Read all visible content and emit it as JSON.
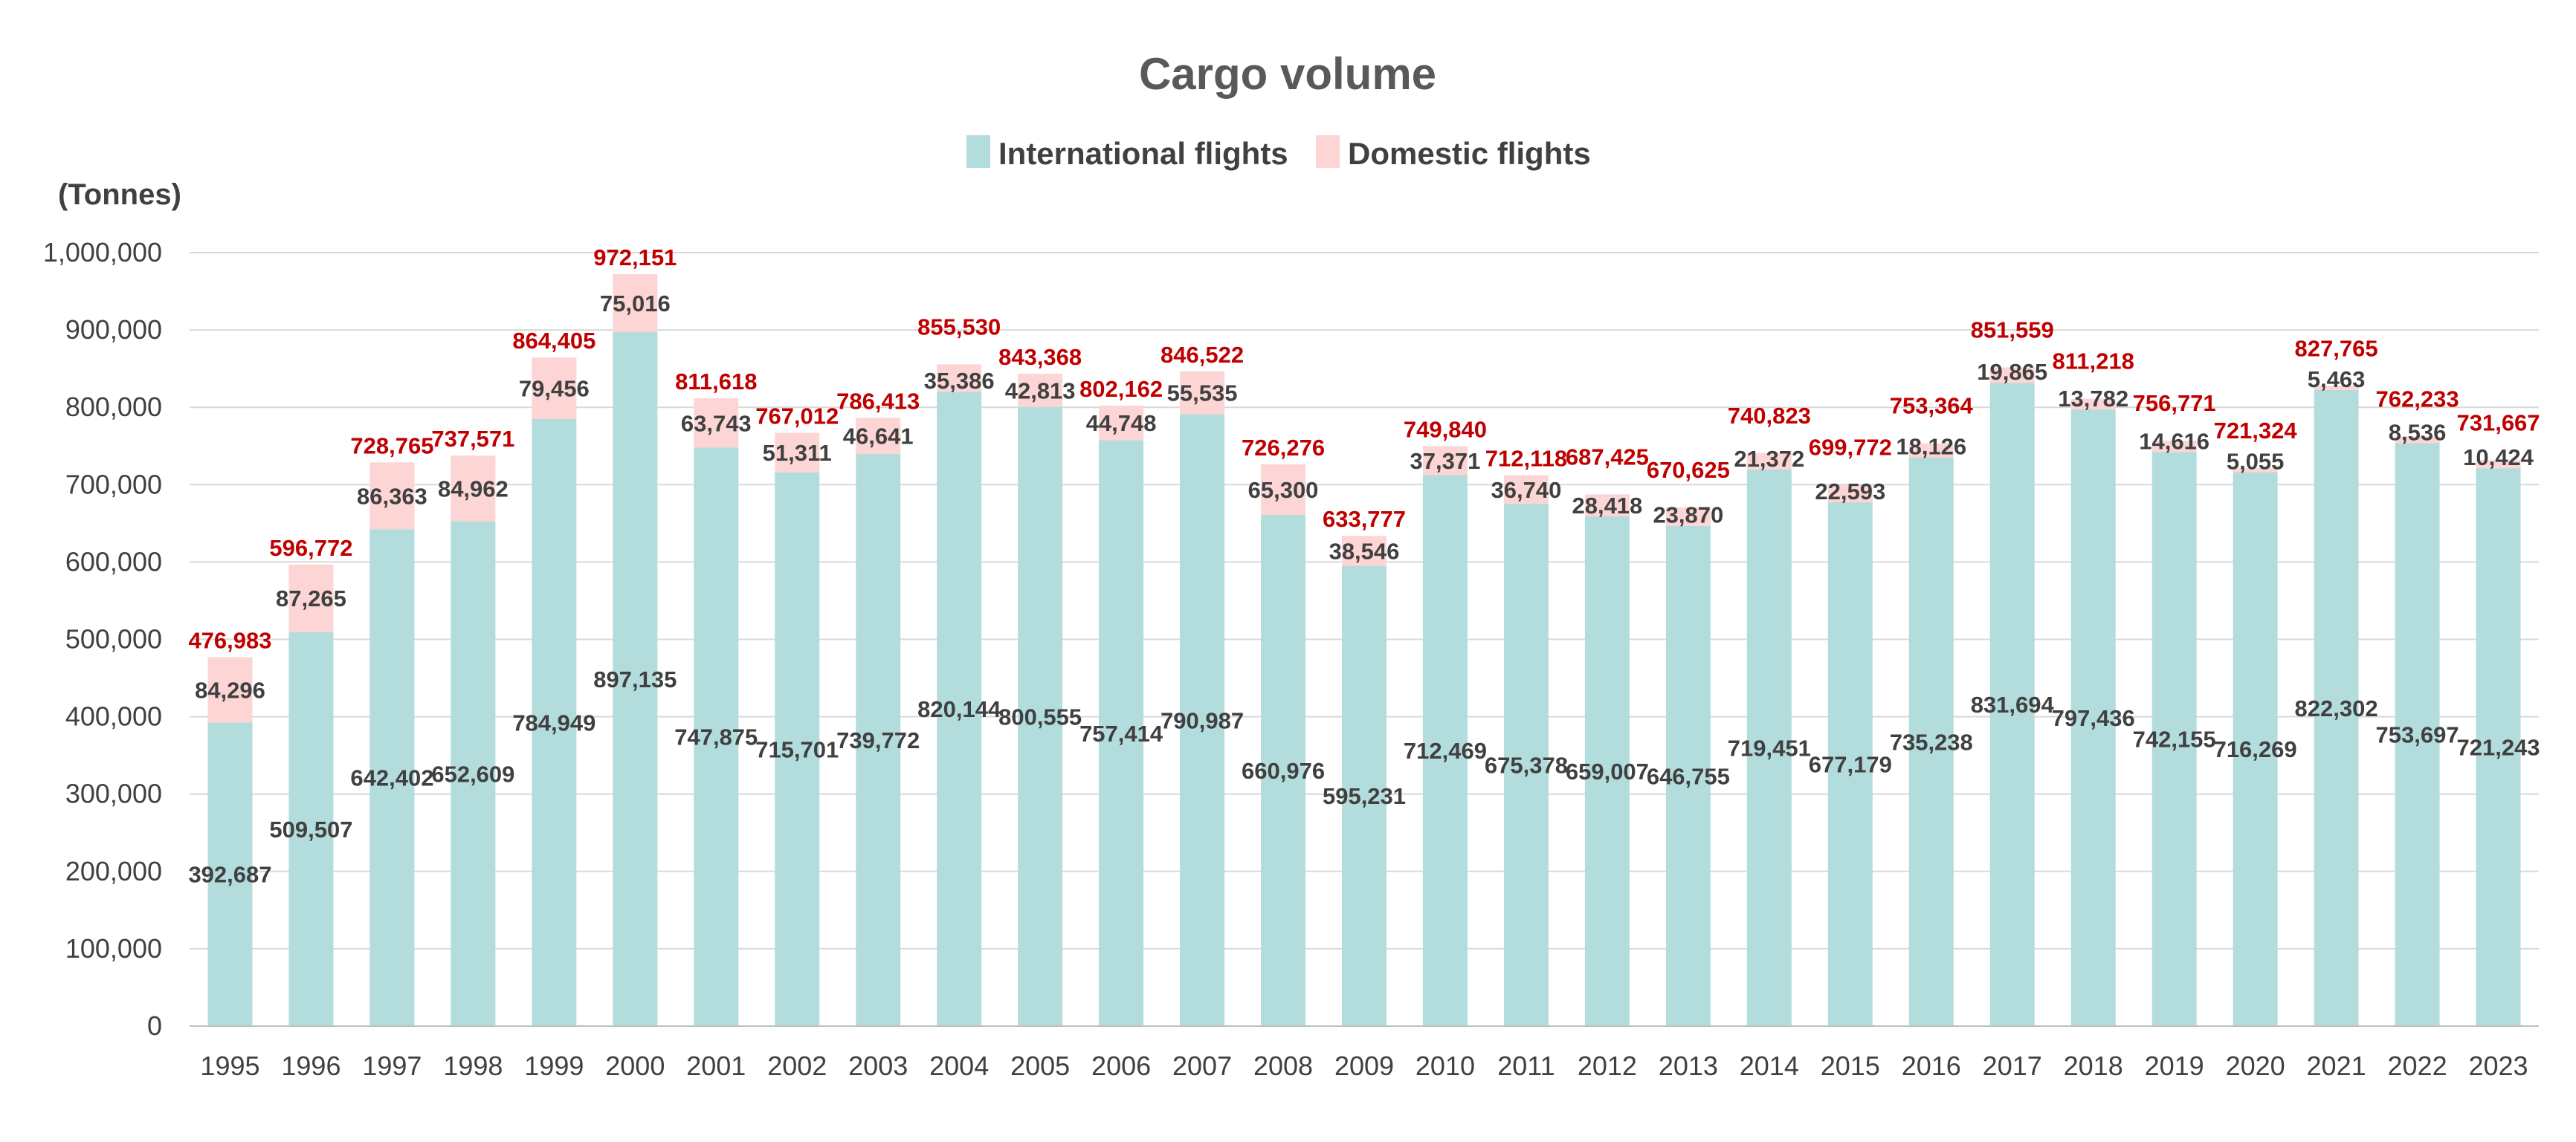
{
  "chart_data": {
    "type": "bar",
    "stacked": true,
    "title": "Cargo volume",
    "ylabel": "(Tonnes)",
    "xlabel": "",
    "ylim": [
      0,
      1000000
    ],
    "yticks": [
      "0",
      "100,000",
      "200,000",
      "300,000",
      "400,000",
      "500,000",
      "600,000",
      "700,000",
      "800,000",
      "900,000",
      "1,000,000"
    ],
    "legend_position": "top-center",
    "grid": true,
    "categories": [
      "1995",
      "1996",
      "1997",
      "1998",
      "1999",
      "2000",
      "2001",
      "2002",
      "2003",
      "2004",
      "2005",
      "2006",
      "2007",
      "2008",
      "2009",
      "2010",
      "2011",
      "2012",
      "2013",
      "2014",
      "2015",
      "2016",
      "2017",
      "2018",
      "2019",
      "2020",
      "2021",
      "2022",
      "2023"
    ],
    "series": [
      {
        "name": "International flights",
        "color": "#b3dcdc",
        "values": [
          392687,
          509507,
          642402,
          652609,
          784949,
          897135,
          747875,
          715701,
          739772,
          820144,
          800555,
          757414,
          790987,
          660976,
          595231,
          712469,
          675378,
          659007,
          646755,
          719451,
          677179,
          735238,
          831694,
          797436,
          742155,
          716269,
          822302,
          753697,
          721243
        ],
        "labels": [
          "392,687",
          "509,507",
          "642,402",
          "652,609",
          "784,949",
          "897,135",
          "747,875",
          "715,701",
          "739,772",
          "820,144",
          "800,555",
          "757,414",
          "790,987",
          "660,976",
          "595,231",
          "712,469",
          "675,378",
          "659,007",
          "646,755",
          "719,451",
          "677,179",
          "735,238",
          "831,694",
          "797,436",
          "742,155",
          "716,269",
          "822,302",
          "753,697",
          "721,243"
        ]
      },
      {
        "name": "Domestic flights",
        "color": "#fdd5d5",
        "values": [
          84296,
          87265,
          86363,
          84962,
          79456,
          75016,
          63743,
          51311,
          46641,
          35386,
          42813,
          44748,
          55535,
          65300,
          38546,
          37371,
          36740,
          28418,
          23870,
          21372,
          22593,
          18126,
          19865,
          13782,
          14616,
          5055,
          5463,
          8536,
          10424
        ],
        "labels": [
          "84,296",
          "87,265",
          "86,363",
          "84,962",
          "79,456",
          "75,016",
          "63,743",
          "51,311",
          "46,641",
          "35,386",
          "42,813",
          "44,748",
          "55,535",
          "65,300",
          "38,546",
          "37,371",
          "36,740",
          "28,418",
          "23,870",
          "21,372",
          "22,593",
          "18,126",
          "19,865",
          "13,782",
          "14,616",
          "5,055",
          "5,463",
          "8,536",
          "10,424"
        ]
      }
    ],
    "totals": [
      476983,
      596772,
      728765,
      737571,
      864405,
      972151,
      811618,
      767012,
      786413,
      855530,
      843368,
      802162,
      846522,
      726276,
      633777,
      749840,
      712118,
      687425,
      670625,
      740823,
      699772,
      753364,
      851559,
      811218,
      756771,
      721324,
      827765,
      762233,
      731667
    ],
    "total_labels": [
      "476,983",
      "596,772",
      "728,765",
      "737,571",
      "864,405",
      "972,151",
      "811,618",
      "767,012",
      "786,413",
      "855,530",
      "843,368",
      "802,162",
      "846,522",
      "726,276",
      "633,777",
      "749,840",
      "712,118",
      "687,425",
      "670,625",
      "740,823",
      "699,772",
      "753,364",
      "851,559",
      "811,218",
      "756,771",
      "721,324",
      "827,765",
      "762,233",
      "731,667"
    ],
    "total_label_color": "#c00000"
  }
}
